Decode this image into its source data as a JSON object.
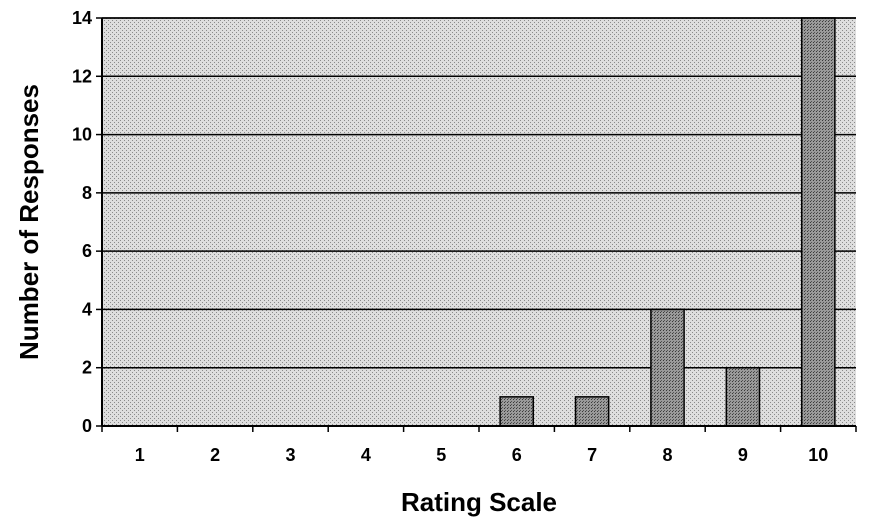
{
  "chart_data": {
    "type": "bar",
    "title": "",
    "xlabel": "Rating Scale",
    "ylabel": "Number of Responses",
    "categories": [
      "1",
      "2",
      "3",
      "4",
      "5",
      "6",
      "7",
      "8",
      "9",
      "10"
    ],
    "values": [
      0,
      0,
      0,
      0,
      0,
      1,
      1,
      4,
      2,
      14
    ],
    "ylim": [
      0,
      14
    ],
    "yticks": [
      "0",
      "2",
      "4",
      "6",
      "8",
      "10",
      "12",
      "14"
    ],
    "grid": true,
    "legend": "none"
  },
  "colors": {
    "plot_background": "dotted light gray",
    "bar_fill": "dotted dark gray",
    "axis": "#000000"
  }
}
